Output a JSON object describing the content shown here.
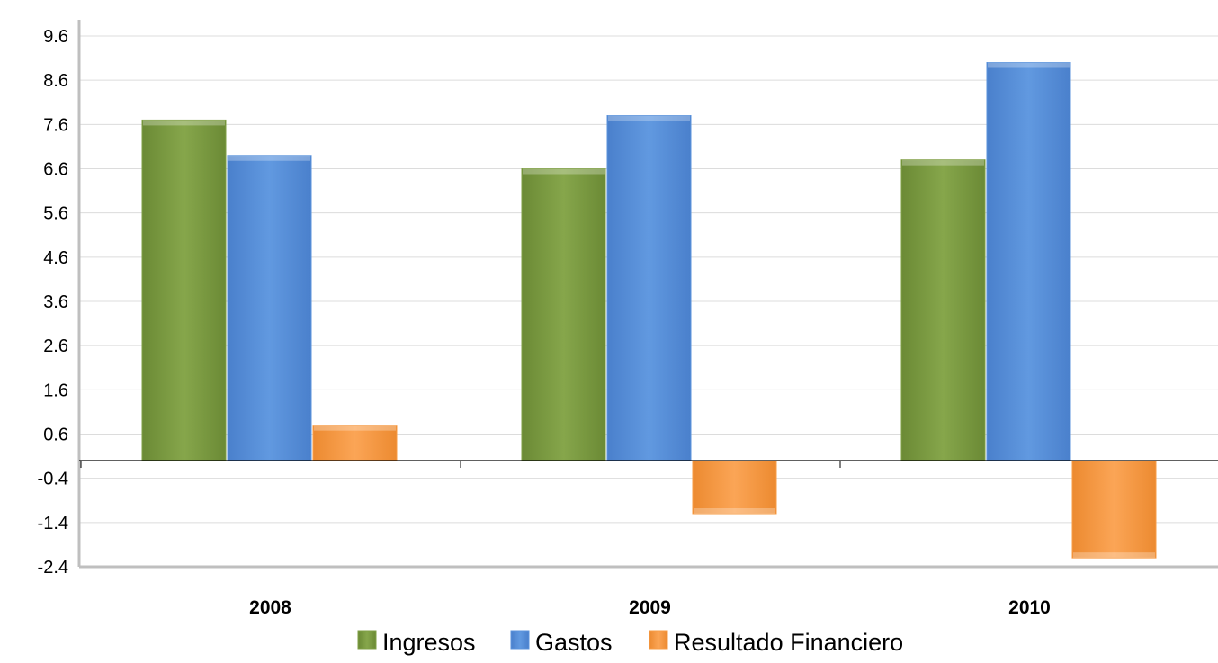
{
  "chart_data": {
    "type": "bar",
    "categories": [
      "2008",
      "2009",
      "2010"
    ],
    "series": [
      {
        "name": "Ingresos",
        "values": [
          7.7,
          6.6,
          6.8
        ],
        "color": "#7f9f45"
      },
      {
        "name": "Gastos",
        "values": [
          6.9,
          7.8,
          9.0
        ],
        "color": "#5b93dc"
      },
      {
        "name": "Resultado Financiero",
        "values": [
          0.8,
          -1.2,
          -2.2
        ],
        "color": "#f79c46"
      }
    ],
    "y_ticks": [
      "9.6",
      "8.6",
      "7.6",
      "6.6",
      "5.6",
      "4.6",
      "3.6",
      "2.6",
      "1.6",
      "0.6",
      "-0.4",
      "-1.4",
      "-2.4"
    ],
    "ylim": [
      -2.4,
      9.6
    ],
    "grid": true,
    "legend_position": "bottom",
    "title": "",
    "xlabel": "",
    "ylabel": ""
  }
}
